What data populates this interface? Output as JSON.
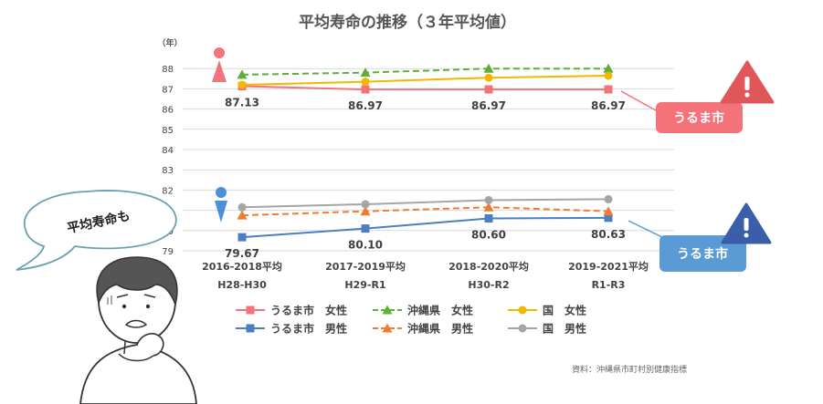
{
  "chart_data": {
    "type": "line",
    "title": "平均寿命の推移（３年平均値）",
    "ylabel": "（年）",
    "ylim": [
      79,
      89
    ],
    "yticks": [
      79,
      80,
      81,
      82,
      83,
      84,
      85,
      86,
      87,
      88
    ],
    "grid": true,
    "legend_position": "bottom",
    "categories": [
      {
        "line1": "2016-2018平均",
        "line2": "H28-H30"
      },
      {
        "line1": "2017-2019平均",
        "line2": "H29-R1"
      },
      {
        "line1": "2018-2020平均",
        "line2": "H30-R2"
      },
      {
        "line1": "2019-2021平均",
        "line2": "R1-R3"
      }
    ],
    "series": [
      {
        "name": "うるま市　女性",
        "values": [
          87.13,
          86.97,
          86.97,
          86.97
        ],
        "color": "#f4737b",
        "marker": "square",
        "dash": false,
        "labels": [
          "87.13",
          "86.97",
          "86.97",
          "86.97"
        ]
      },
      {
        "name": "沖縄県　女性",
        "values": [
          87.7,
          87.8,
          88.0,
          88.0
        ],
        "color": "#5fae3a",
        "marker": "triangle",
        "dash": true
      },
      {
        "name": "国　女性",
        "values": [
          87.2,
          87.35,
          87.55,
          87.65
        ],
        "color": "#f2b800",
        "marker": "circle",
        "dash": false
      },
      {
        "name": "うるま市　男性",
        "values": [
          79.67,
          80.1,
          80.6,
          80.63
        ],
        "color": "#4a7fc1",
        "marker": "square",
        "dash": false,
        "labels": [
          "79.67",
          "80.10",
          "80.60",
          "80.63"
        ]
      },
      {
        "name": "沖縄県　男性",
        "values": [
          80.75,
          80.95,
          81.15,
          80.95
        ],
        "color": "#ee7d31",
        "marker": "triangle",
        "dash": true
      },
      {
        "name": "国　男性",
        "values": [
          81.15,
          81.3,
          81.5,
          81.55
        ],
        "color": "#a5a5a5",
        "marker": "circle",
        "dash": false
      }
    ]
  },
  "callouts": {
    "female": {
      "text": "うるま市",
      "color": "#f4737b"
    },
    "male": {
      "text": "うるま市",
      "color": "#5b9bd5"
    }
  },
  "speech_bubble": {
    "text": "平均寿命も"
  },
  "source": "資料：沖縄県市町村別健康指標",
  "colors": {
    "warning_red": "#e15759",
    "warning_blue": "#3b5ea8",
    "female_icon": "#f4737b",
    "male_icon": "#4a90d9"
  },
  "icons": [
    "female-symbol-icon",
    "male-symbol-icon",
    "warning-icon",
    "worried-person-icon"
  ]
}
